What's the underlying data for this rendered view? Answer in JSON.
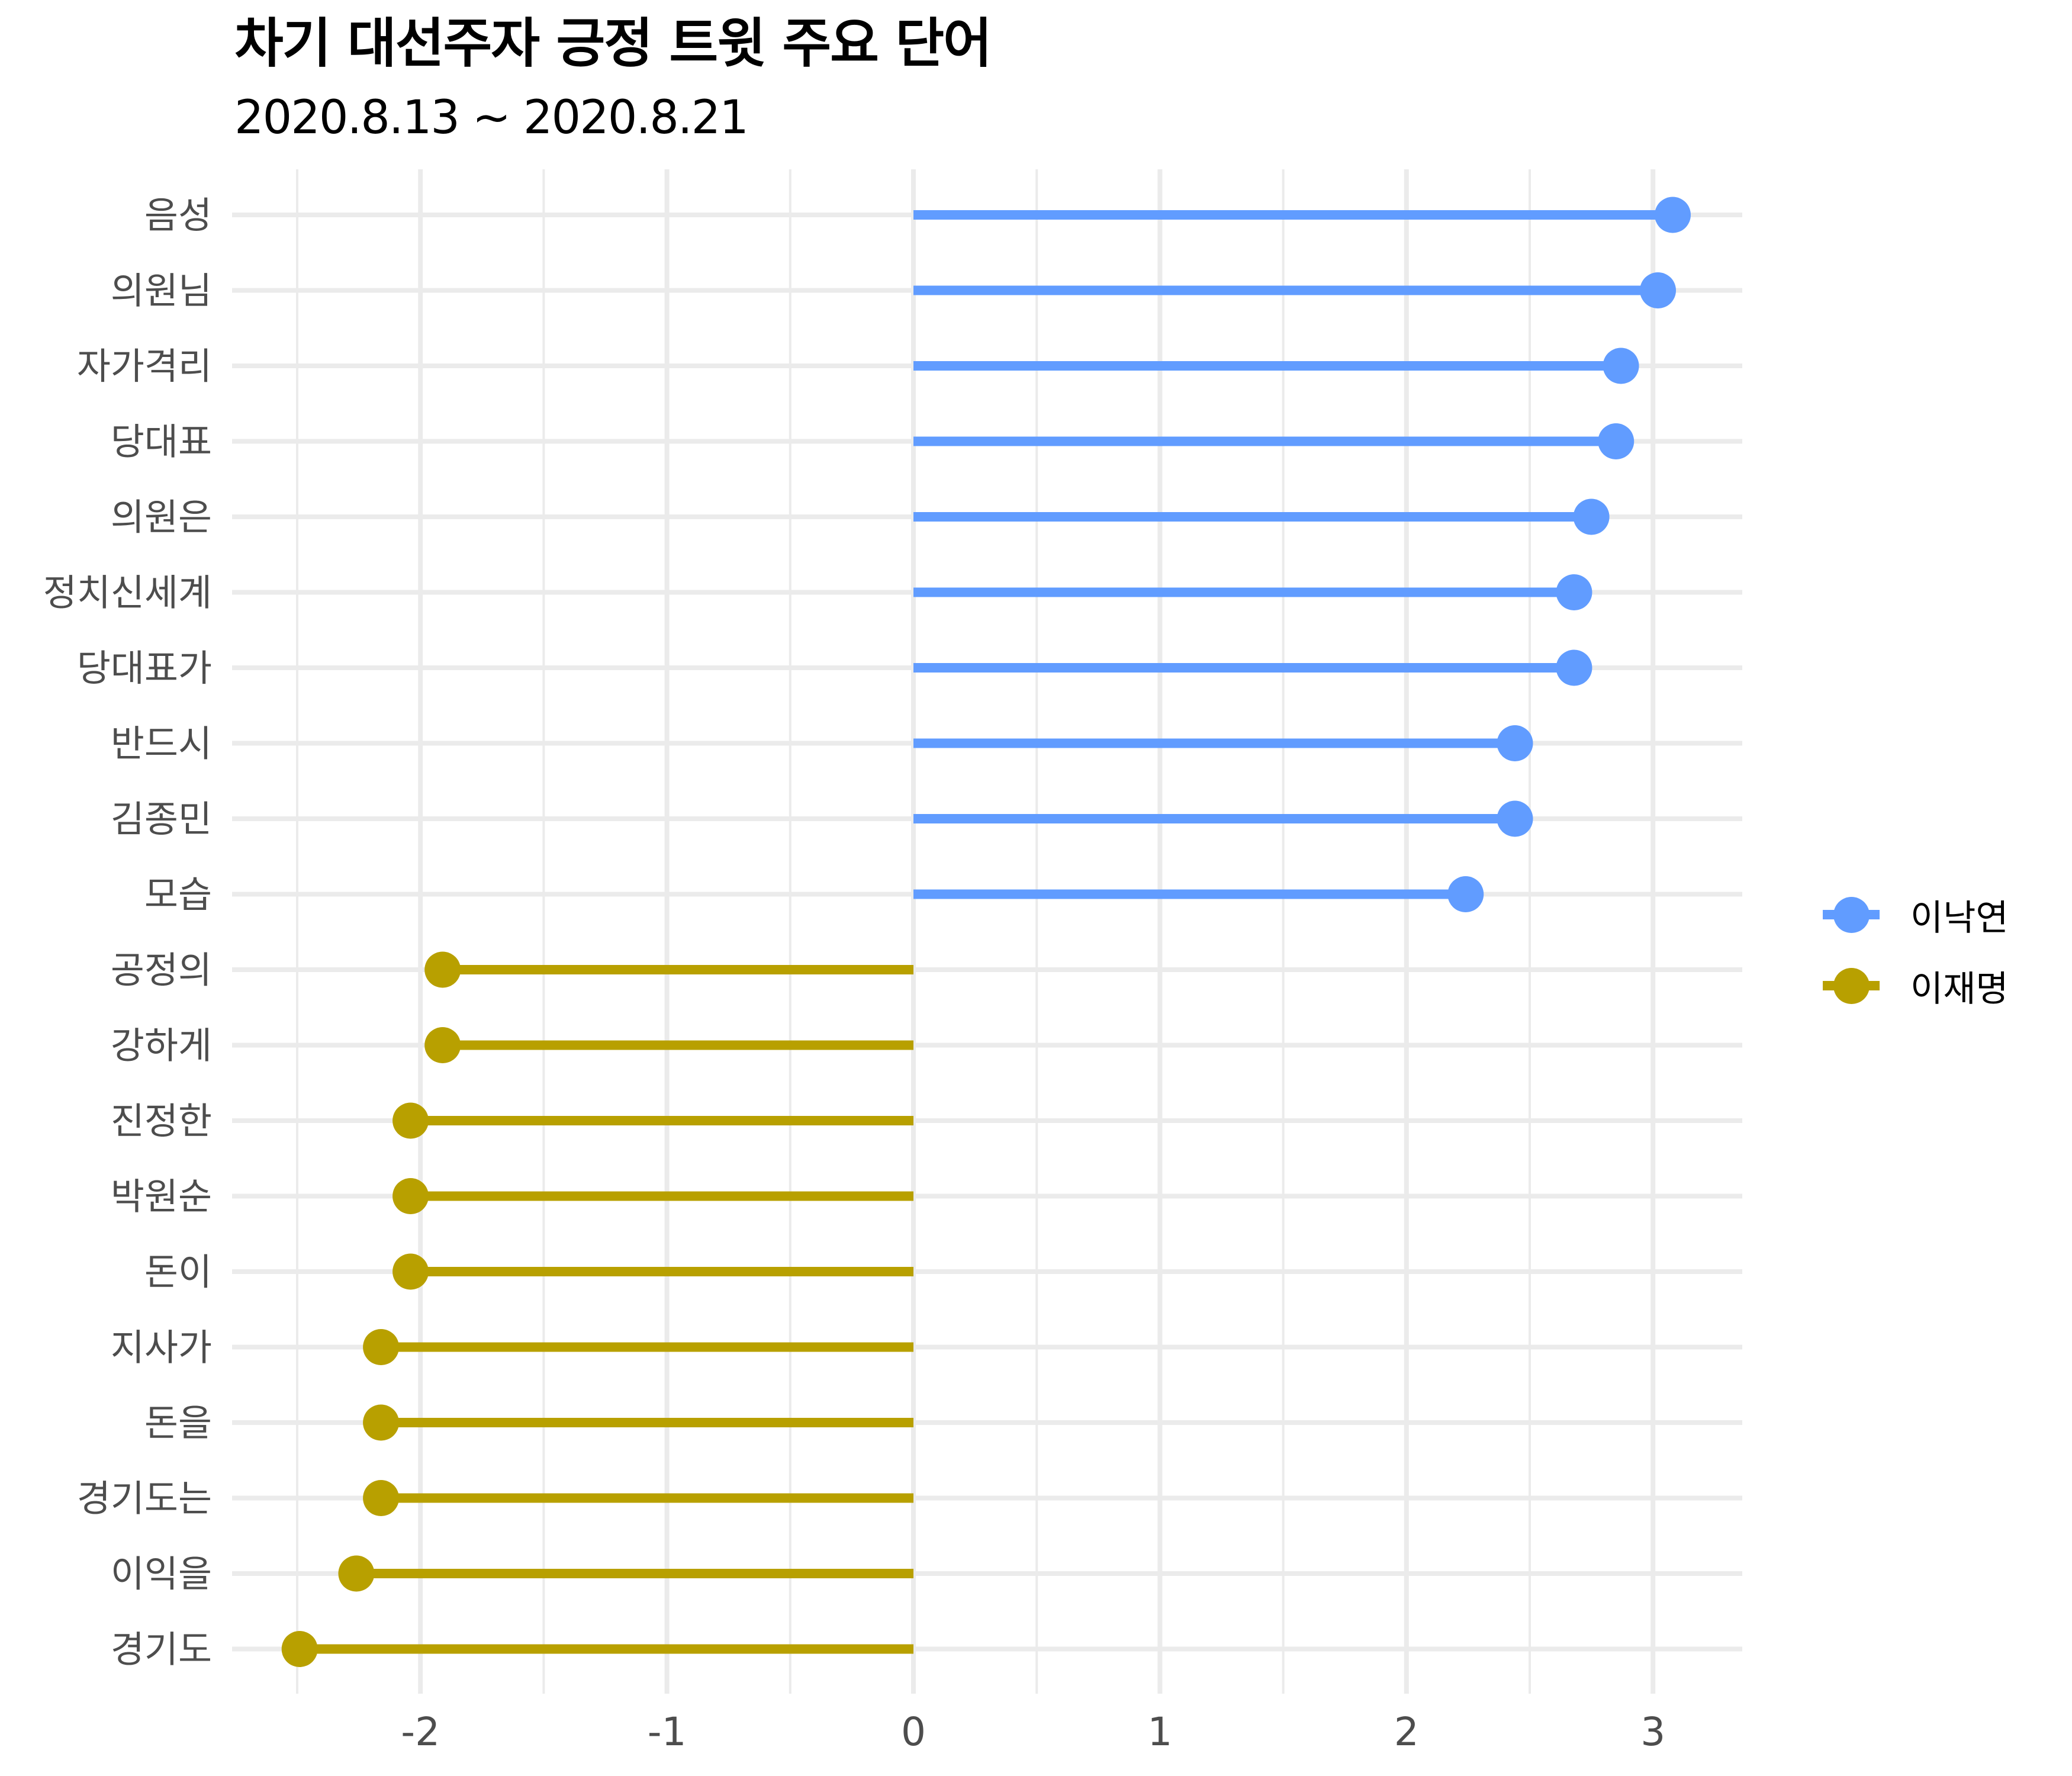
{
  "chart_data": {
    "type": "lollipop",
    "title": "차기 대선주자 긍정 트윗 주요 단어",
    "subtitle": "2020.8.13 ~ 2020.8.21",
    "xlabel": "",
    "ylabel": "",
    "xlim": [
      -2.5,
      3.3
    ],
    "x_ticks": [
      -2,
      -1,
      0,
      1,
      2,
      3
    ],
    "x_tick_labels": [
      "-2",
      "-1",
      "0",
      "1",
      "2",
      "3"
    ],
    "grid": true,
    "legend_position": "right",
    "legend": [
      {
        "name": "이낙연",
        "color": "#619CFF"
      },
      {
        "name": "이재명",
        "color": "#B8A000"
      }
    ],
    "categories": [
      "음성",
      "의원님",
      "자가격리",
      "당대표",
      "의원은",
      "정치신세계",
      "당대표가",
      "반드시",
      "김종민",
      "모습",
      "공정의",
      "강하게",
      "진정한",
      "박원순",
      "돈이",
      "지사가",
      "돈을",
      "경기도는",
      "이익을",
      "경기도"
    ],
    "points": [
      {
        "label": "음성",
        "value": 3.08,
        "series": "이낙연"
      },
      {
        "label": "의원님",
        "value": 3.02,
        "series": "이낙연"
      },
      {
        "label": "자가격리",
        "value": 2.87,
        "series": "이낙연"
      },
      {
        "label": "당대표",
        "value": 2.85,
        "series": "이낙연"
      },
      {
        "label": "의원은",
        "value": 2.75,
        "series": "이낙연"
      },
      {
        "label": "정치신세계",
        "value": 2.68,
        "series": "이낙연"
      },
      {
        "label": "당대표가",
        "value": 2.68,
        "series": "이낙연"
      },
      {
        "label": "반드시",
        "value": 2.44,
        "series": "이낙연"
      },
      {
        "label": "김종민",
        "value": 2.44,
        "series": "이낙연"
      },
      {
        "label": "모습",
        "value": 2.24,
        "series": "이낙연"
      },
      {
        "label": "공정의",
        "value": -1.91,
        "series": "이재명"
      },
      {
        "label": "강하게",
        "value": -1.91,
        "series": "이재명"
      },
      {
        "label": "진정한",
        "value": -2.04,
        "series": "이재명"
      },
      {
        "label": "박원순",
        "value": -2.04,
        "series": "이재명"
      },
      {
        "label": "돈이",
        "value": -2.04,
        "series": "이재명"
      },
      {
        "label": "지사가",
        "value": -2.16,
        "series": "이재명"
      },
      {
        "label": "돈을",
        "value": -2.16,
        "series": "이재명"
      },
      {
        "label": "경기도는",
        "value": -2.16,
        "series": "이재명"
      },
      {
        "label": "이익을",
        "value": -2.26,
        "series": "이재명"
      },
      {
        "label": "경기도",
        "value": -2.49,
        "series": "이재명"
      }
    ]
  },
  "colors": {
    "series_a": "#619CFF",
    "series_b": "#B8A000",
    "grid": "#EBEBEB",
    "axis_text": "#4D4D4D",
    "title": "#000000"
  }
}
